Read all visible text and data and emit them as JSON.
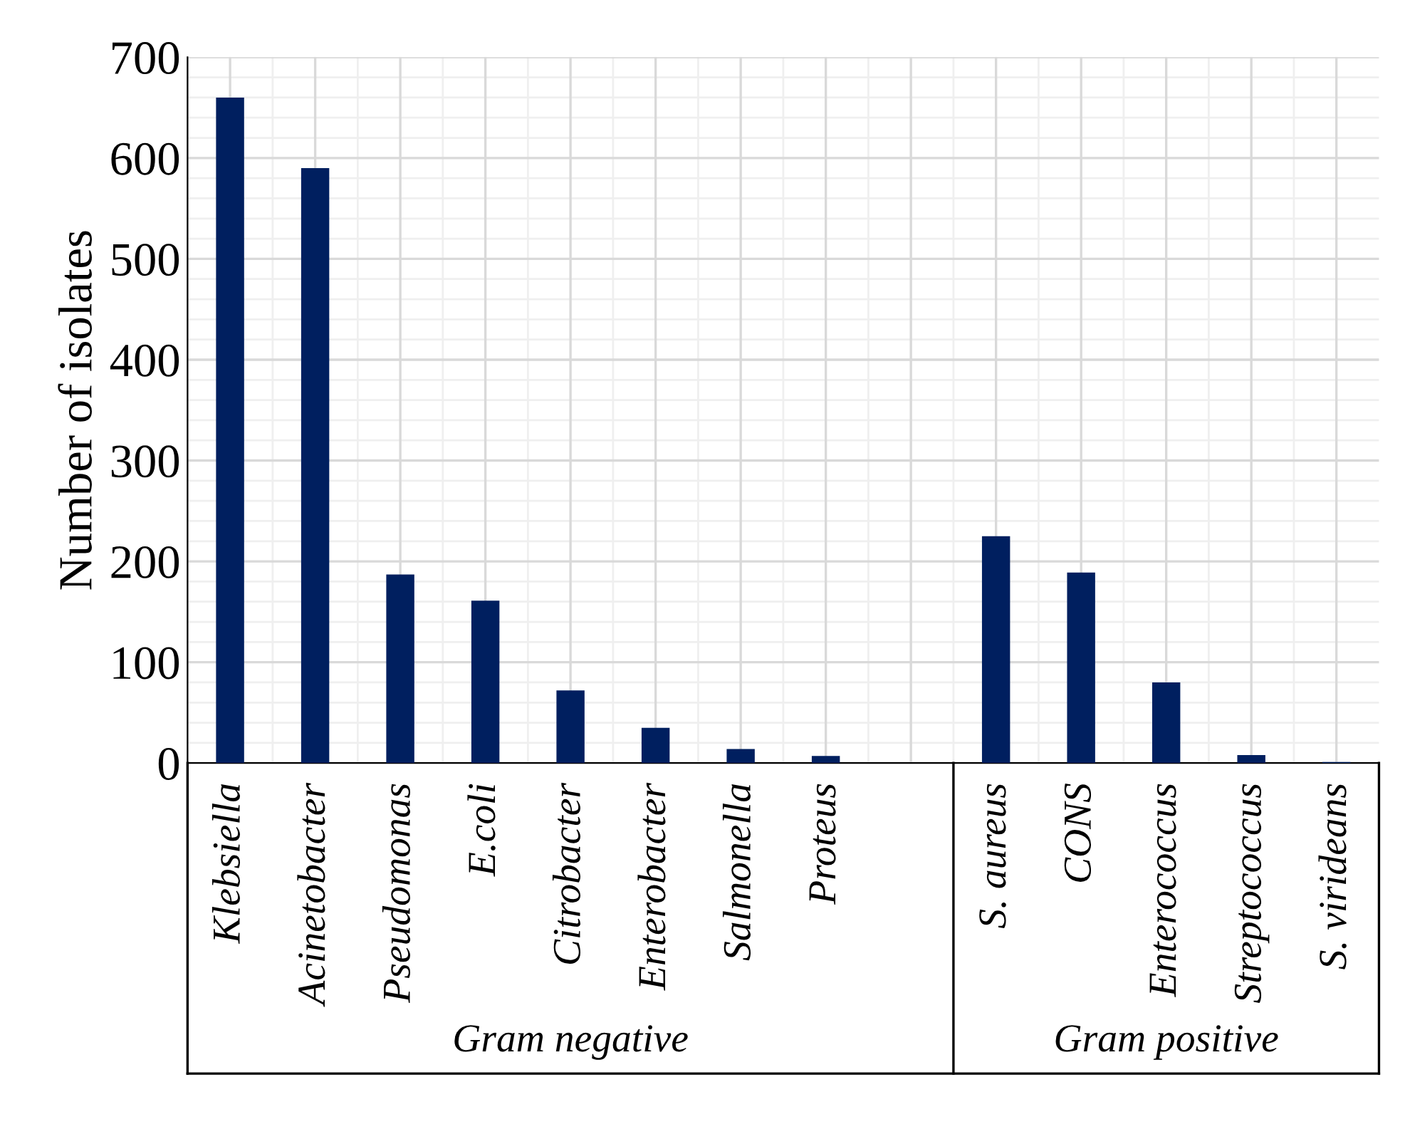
{
  "chart_data": {
    "type": "bar",
    "ylabel": "Number of isolates",
    "categories": [
      "Klebsiella",
      "Acinetobacter",
      "Pseudomonas",
      "E.coli",
      "Citrobacter",
      "Enterobacter",
      "Salmonella",
      "Proteus",
      null,
      "S. aureus",
      "CONS",
      "Enterococcus",
      "Streptococcus",
      "S. virideans"
    ],
    "values": [
      660,
      590,
      187,
      161,
      72,
      35,
      14,
      7,
      null,
      225,
      189,
      80,
      8,
      1
    ],
    "color": "#001f5f",
    "ylim": [
      0,
      700
    ],
    "yticks": [
      0,
      100,
      200,
      300,
      400,
      500,
      600,
      700
    ],
    "grid": true,
    "annotations": [
      "Gram negative",
      "Gram positive"
    ]
  }
}
